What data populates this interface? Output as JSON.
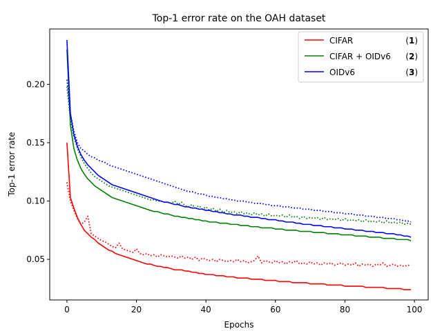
{
  "chart_data": {
    "type": "line",
    "title": "Top-1 error rate on the OAH dataset",
    "xlabel": "Epochs",
    "ylabel": "Top-1 error rate",
    "xlim": [
      -4.95,
      103.95
    ],
    "ylim": [
      0.0152,
      0.2475
    ],
    "xticks": [
      0,
      20,
      40,
      60,
      80,
      100
    ],
    "xtick_labels": [
      "0",
      "20",
      "40",
      "60",
      "80",
      "100"
    ],
    "yticks": [
      0.05,
      0.1,
      0.15,
      0.2
    ],
    "ytick_labels": [
      "0.05",
      "0.10",
      "0.15",
      "0.20"
    ],
    "grid": false,
    "legend": {
      "position": "top-right",
      "entries": [
        {
          "name": "CIFAR",
          "num": "1"
        },
        {
          "name": "CIFAR + OIDv6",
          "num": "2"
        },
        {
          "name": "OIDv6",
          "num": "3"
        }
      ]
    },
    "colors": {
      "series1": "#ff0000",
      "series2": "#008000",
      "series3": "#0000ff"
    },
    "x_start": 0,
    "x_step": 1,
    "series": [
      {
        "name": "CIFAR",
        "style": "solid",
        "color": "#ff0000",
        "values": [
          0.15,
          0.103,
          0.094,
          0.086,
          0.08,
          0.075,
          0.072,
          0.069,
          0.067,
          0.064,
          0.062,
          0.06,
          0.058,
          0.057,
          0.055,
          0.054,
          0.053,
          0.052,
          0.051,
          0.05,
          0.049,
          0.048,
          0.047,
          0.046,
          0.046,
          0.045,
          0.044,
          0.044,
          0.043,
          0.043,
          0.042,
          0.041,
          0.041,
          0.041,
          0.04,
          0.04,
          0.039,
          0.039,
          0.038,
          0.038,
          0.037,
          0.037,
          0.037,
          0.036,
          0.036,
          0.036,
          0.035,
          0.035,
          0.035,
          0.034,
          0.034,
          0.034,
          0.034,
          0.033,
          0.033,
          0.033,
          0.033,
          0.032,
          0.032,
          0.032,
          0.032,
          0.031,
          0.031,
          0.031,
          0.031,
          0.03,
          0.03,
          0.03,
          0.03,
          0.03,
          0.029,
          0.029,
          0.029,
          0.029,
          0.029,
          0.028,
          0.028,
          0.028,
          0.028,
          0.028,
          0.027,
          0.027,
          0.027,
          0.027,
          0.027,
          0.027,
          0.026,
          0.026,
          0.026,
          0.026,
          0.026,
          0.026,
          0.025,
          0.025,
          0.025,
          0.025,
          0.025,
          0.024,
          0.024,
          0.024
        ]
      },
      {
        "name": "CIFAR",
        "style": "dotted",
        "color": "#ff0000",
        "values": [
          0.116,
          0.1,
          0.092,
          0.085,
          0.08,
          0.082,
          0.087,
          0.072,
          0.07,
          0.068,
          0.066,
          0.065,
          0.063,
          0.061,
          0.06,
          0.064,
          0.059,
          0.058,
          0.057,
          0.056,
          0.059,
          0.055,
          0.054,
          0.055,
          0.053,
          0.054,
          0.052,
          0.054,
          0.053,
          0.052,
          0.053,
          0.052,
          0.051,
          0.053,
          0.051,
          0.052,
          0.05,
          0.052,
          0.049,
          0.051,
          0.05,
          0.049,
          0.05,
          0.048,
          0.05,
          0.049,
          0.048,
          0.049,
          0.048,
          0.05,
          0.048,
          0.049,
          0.047,
          0.048,
          0.049,
          0.053,
          0.047,
          0.049,
          0.048,
          0.047,
          0.049,
          0.047,
          0.048,
          0.046,
          0.048,
          0.047,
          0.049,
          0.046,
          0.047,
          0.046,
          0.048,
          0.046,
          0.047,
          0.045,
          0.047,
          0.046,
          0.047,
          0.045,
          0.046,
          0.047,
          0.045,
          0.046,
          0.045,
          0.047,
          0.044,
          0.046,
          0.045,
          0.046,
          0.044,
          0.046,
          0.045,
          0.047,
          0.044,
          0.045,
          0.046,
          0.044,
          0.045,
          0.044,
          0.045,
          0.045
        ]
      },
      {
        "name": "CIFAR + OIDv6",
        "style": "solid",
        "color": "#008000",
        "values": [
          0.23,
          0.165,
          0.145,
          0.135,
          0.128,
          0.123,
          0.119,
          0.116,
          0.113,
          0.111,
          0.109,
          0.107,
          0.105,
          0.103,
          0.102,
          0.101,
          0.1,
          0.099,
          0.098,
          0.097,
          0.096,
          0.095,
          0.094,
          0.093,
          0.092,
          0.091,
          0.091,
          0.09,
          0.089,
          0.089,
          0.088,
          0.087,
          0.087,
          0.086,
          0.086,
          0.085,
          0.085,
          0.084,
          0.084,
          0.083,
          0.083,
          0.082,
          0.082,
          0.082,
          0.081,
          0.081,
          0.081,
          0.08,
          0.08,
          0.08,
          0.079,
          0.079,
          0.079,
          0.078,
          0.078,
          0.078,
          0.077,
          0.077,
          0.077,
          0.077,
          0.076,
          0.076,
          0.076,
          0.075,
          0.075,
          0.075,
          0.075,
          0.074,
          0.074,
          0.074,
          0.074,
          0.073,
          0.073,
          0.073,
          0.073,
          0.072,
          0.072,
          0.072,
          0.072,
          0.071,
          0.071,
          0.071,
          0.071,
          0.07,
          0.07,
          0.07,
          0.07,
          0.069,
          0.069,
          0.069,
          0.069,
          0.068,
          0.068,
          0.068,
          0.068,
          0.067,
          0.067,
          0.067,
          0.067,
          0.066
        ]
      },
      {
        "name": "CIFAR + OIDv6",
        "style": "dotted",
        "color": "#008000",
        "values": [
          0.198,
          0.17,
          0.155,
          0.145,
          0.138,
          0.132,
          0.128,
          0.124,
          0.121,
          0.119,
          0.117,
          0.115,
          0.113,
          0.112,
          0.111,
          0.11,
          0.109,
          0.108,
          0.107,
          0.106,
          0.105,
          0.104,
          0.103,
          0.102,
          0.101,
          0.101,
          0.1,
          0.1,
          0.099,
          0.099,
          0.098,
          0.1,
          0.097,
          0.099,
          0.096,
          0.095,
          0.097,
          0.094,
          0.096,
          0.093,
          0.095,
          0.092,
          0.094,
          0.091,
          0.093,
          0.09,
          0.092,
          0.09,
          0.091,
          0.089,
          0.091,
          0.089,
          0.09,
          0.088,
          0.09,
          0.088,
          0.089,
          0.087,
          0.089,
          0.087,
          0.088,
          0.087,
          0.088,
          0.086,
          0.088,
          0.086,
          0.087,
          0.085,
          0.087,
          0.085,
          0.086,
          0.085,
          0.086,
          0.084,
          0.086,
          0.084,
          0.085,
          0.084,
          0.085,
          0.083,
          0.085,
          0.083,
          0.084,
          0.083,
          0.084,
          0.082,
          0.084,
          0.082,
          0.083,
          0.082,
          0.083,
          0.081,
          0.083,
          0.081,
          0.082,
          0.081,
          0.082,
          0.08,
          0.081,
          0.08
        ]
      },
      {
        "name": "OIDv6",
        "style": "solid",
        "color": "#0000ff",
        "values": [
          0.238,
          0.175,
          0.157,
          0.147,
          0.14,
          0.135,
          0.131,
          0.128,
          0.125,
          0.122,
          0.12,
          0.118,
          0.116,
          0.114,
          0.113,
          0.112,
          0.111,
          0.11,
          0.109,
          0.108,
          0.107,
          0.106,
          0.105,
          0.104,
          0.103,
          0.102,
          0.101,
          0.1,
          0.099,
          0.099,
          0.098,
          0.097,
          0.097,
          0.096,
          0.095,
          0.095,
          0.094,
          0.094,
          0.093,
          0.093,
          0.092,
          0.092,
          0.091,
          0.091,
          0.09,
          0.09,
          0.089,
          0.089,
          0.088,
          0.088,
          0.088,
          0.087,
          0.087,
          0.086,
          0.086,
          0.086,
          0.085,
          0.085,
          0.084,
          0.084,
          0.084,
          0.083,
          0.083,
          0.082,
          0.082,
          0.082,
          0.081,
          0.081,
          0.08,
          0.08,
          0.08,
          0.079,
          0.079,
          0.079,
          0.078,
          0.078,
          0.078,
          0.077,
          0.077,
          0.077,
          0.076,
          0.076,
          0.076,
          0.075,
          0.075,
          0.075,
          0.074,
          0.074,
          0.074,
          0.073,
          0.073,
          0.073,
          0.072,
          0.072,
          0.072,
          0.071,
          0.071,
          0.07,
          0.07,
          0.069
        ]
      },
      {
        "name": "OIDv6",
        "style": "dotted",
        "color": "#0000ff",
        "values": [
          0.204,
          0.175,
          0.16,
          0.15,
          0.145,
          0.143,
          0.14,
          0.138,
          0.137,
          0.135,
          0.134,
          0.133,
          0.131,
          0.13,
          0.129,
          0.128,
          0.127,
          0.126,
          0.125,
          0.124,
          0.123,
          0.122,
          0.121,
          0.12,
          0.119,
          0.118,
          0.117,
          0.116,
          0.115,
          0.114,
          0.113,
          0.112,
          0.111,
          0.11,
          0.109,
          0.108,
          0.108,
          0.107,
          0.106,
          0.106,
          0.105,
          0.104,
          0.104,
          0.103,
          0.103,
          0.102,
          0.102,
          0.101,
          0.101,
          0.1,
          0.1,
          0.1,
          0.099,
          0.099,
          0.098,
          0.098,
          0.098,
          0.097,
          0.097,
          0.096,
          0.096,
          0.096,
          0.095,
          0.095,
          0.095,
          0.094,
          0.094,
          0.094,
          0.093,
          0.093,
          0.093,
          0.092,
          0.092,
          0.092,
          0.091,
          0.091,
          0.091,
          0.09,
          0.09,
          0.09,
          0.089,
          0.089,
          0.089,
          0.088,
          0.088,
          0.088,
          0.087,
          0.087,
          0.087,
          0.086,
          0.086,
          0.086,
          0.085,
          0.085,
          0.085,
          0.084,
          0.084,
          0.083,
          0.083,
          0.082
        ]
      }
    ]
  }
}
